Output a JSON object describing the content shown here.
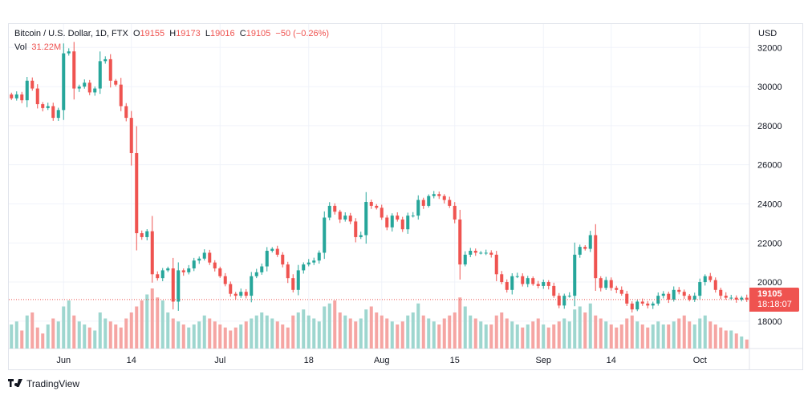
{
  "header": {
    "symbol": "Bitcoin / U.S. Dollar, 1D, FTX",
    "open_label": "O",
    "open": "19155",
    "high_label": "H",
    "high": "19173",
    "low_label": "L",
    "low": "19016",
    "close_label": "C",
    "close": "19105",
    "change": "−50 (−0.26%)",
    "volume_label": "Vol",
    "volume": "31.22M"
  },
  "price_axis": {
    "currency": "USD"
  },
  "last_price": {
    "price": "19105",
    "countdown": "18:18:07"
  },
  "branding": {
    "name": "TradingView"
  },
  "colors": {
    "up": "#26a69a",
    "down": "#ef5350",
    "up_volume": "#9ed6cf",
    "down_volume": "#f5a5a3",
    "grid": "#f0f3fa"
  },
  "chart_data": {
    "type": "candlestick",
    "title": "Bitcoin / U.S. Dollar, 1D, FTX",
    "ylabel": "USD",
    "ylim": [
      16600,
      33200
    ],
    "yticks": [
      18000,
      20000,
      22000,
      24000,
      26000,
      28000,
      30000,
      32000
    ],
    "x_tick_labels": [
      {
        "label": "Jun",
        "date": "2022-06-01"
      },
      {
        "label": "14",
        "date": "2022-06-14"
      },
      {
        "label": "Jul",
        "date": "2022-07-01"
      },
      {
        "label": "18",
        "date": "2022-07-18"
      },
      {
        "label": "Aug",
        "date": "2022-08-01"
      },
      {
        "label": "15",
        "date": "2022-08-15"
      },
      {
        "label": "Sep",
        "date": "2022-09-01"
      },
      {
        "label": "14",
        "date": "2022-09-14"
      },
      {
        "label": "Oct",
        "date": "2022-10-01"
      }
    ],
    "start_date": "2022-05-22",
    "grid": true,
    "last_price_line": 19105,
    "volume_scale_max": 100,
    "closes": [
      29400,
      29600,
      29300,
      30300,
      29900,
      29100,
      28900,
      29000,
      28400,
      28800,
      31700,
      31800,
      29900,
      30000,
      30200,
      29700,
      29900,
      31300,
      31400,
      30300,
      30100,
      29000,
      28400,
      26600,
      22500,
      22300,
      22600,
      20400,
      20200,
      20600,
      20700,
      19000,
      20600,
      20500,
      20700,
      21100,
      21200,
      21500,
      21000,
      20700,
      20300,
      19900,
      19400,
      19300,
      19500,
      19300,
      20300,
      20500,
      20800,
      21600,
      21700,
      21400,
      20900,
      20200,
      19600,
      20600,
      20900,
      21000,
      21100,
      21500,
      23300,
      23900,
      23600,
      23200,
      23400,
      23100,
      22300,
      22400,
      24100,
      23900,
      23800,
      23300,
      22800,
      23400,
      23200,
      22700,
      23400,
      23400,
      24200,
      23900,
      24400,
      24500,
      24400,
      24200,
      23900,
      23200,
      20900,
      21400,
      21600,
      21500,
      21500,
      21500,
      21400,
      20400,
      20000,
      19600,
      20300,
      20300,
      19900,
      20200,
      19900,
      19800,
      20000,
      19800,
      19300,
      18800,
      19300,
      19300,
      21400,
      21800,
      21700,
      22400,
      20200,
      19700,
      20100,
      19700,
      19600,
      19400,
      18900,
      18600,
      19000,
      18900,
      18800,
      18900,
      19300,
      19400,
      19100,
      19600,
      19500,
      19300,
      19100,
      19300,
      20000,
      20300,
      20100,
      19600,
      19300,
      19200,
      19200,
      19100,
      19200,
      19100
    ],
    "volumes": [
      40,
      45,
      30,
      55,
      60,
      35,
      25,
      40,
      50,
      45,
      70,
      80,
      55,
      45,
      40,
      35,
      30,
      60,
      50,
      45,
      40,
      35,
      50,
      60,
      70,
      80,
      90,
      100,
      85,
      80,
      60,
      50,
      45,
      40,
      35,
      40,
      45,
      55,
      50,
      45,
      40,
      35,
      30,
      35,
      40,
      45,
      50,
      55,
      60,
      55,
      50,
      45,
      40,
      35,
      55,
      60,
      65,
      55,
      50,
      45,
      70,
      75,
      80,
      60,
      55,
      50,
      45,
      50,
      65,
      70,
      60,
      55,
      50,
      45,
      40,
      45,
      55,
      60,
      75,
      55,
      50,
      45,
      40,
      50,
      55,
      60,
      85,
      70,
      55,
      50,
      45,
      40,
      40,
      55,
      60,
      50,
      45,
      40,
      35,
      40,
      45,
      50,
      40,
      35,
      40,
      45,
      50,
      45,
      65,
      70,
      60,
      75,
      55,
      50,
      45,
      40,
      35,
      40,
      50,
      55,
      45,
      40,
      35,
      40,
      45,
      40,
      40,
      45,
      50,
      55,
      45,
      40,
      50,
      55,
      45,
      40,
      35,
      30,
      30,
      25,
      20,
      15
    ],
    "series": [
      {
        "name": "Bitcoin / U.S. Dollar",
        "role": "price"
      },
      {
        "name": "Vol",
        "role": "volume"
      }
    ]
  }
}
